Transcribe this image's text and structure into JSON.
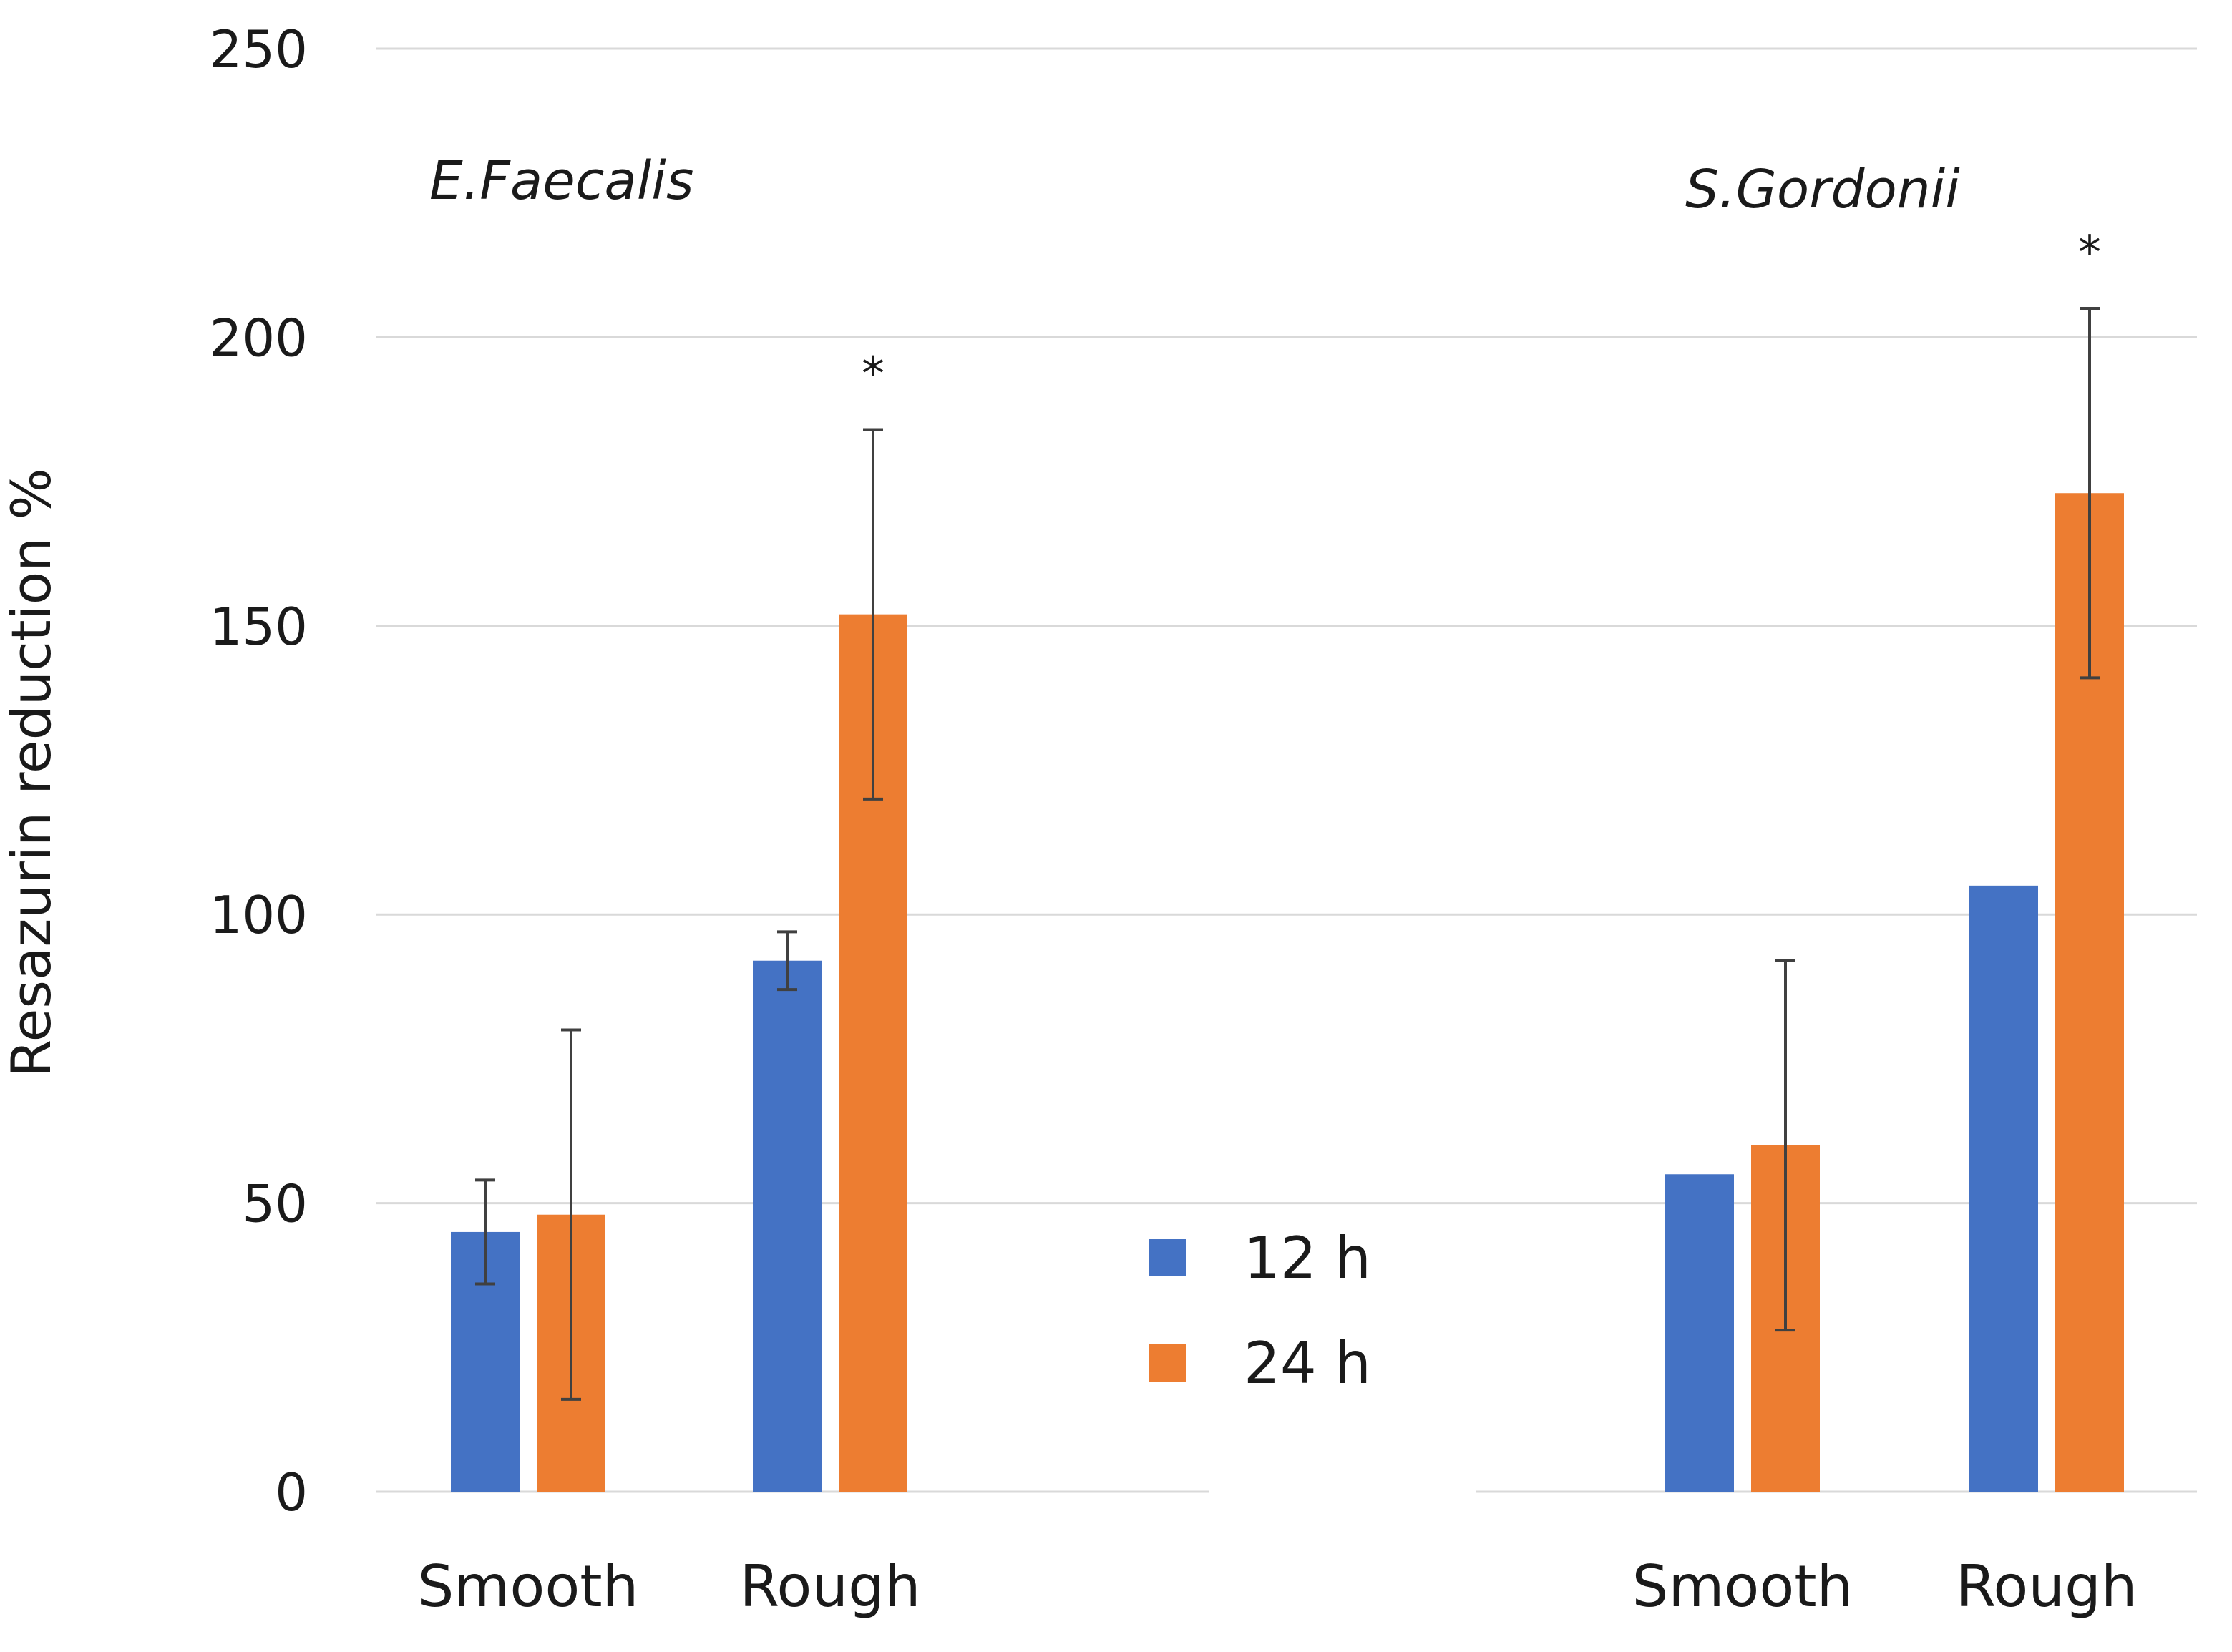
{
  "chart_data": {
    "type": "bar",
    "title": "",
    "xlabel": "",
    "ylabel": "Resazurin reduction %",
    "ylim": [
      0,
      250
    ],
    "yticks": [
      0,
      50,
      100,
      150,
      200,
      250
    ],
    "grid": true,
    "series_names": [
      "12 h",
      "24 h"
    ],
    "series_colors": [
      "#4472c4",
      "#ed7d31"
    ],
    "legend_position": "center",
    "groups": [
      {
        "title": "E.Faecalis",
        "categories": [
          {
            "label": "Smooth",
            "bars": [
              {
                "series": "12 h",
                "value": 45,
                "error_low": 36,
                "error_high": 54,
                "significant": false
              },
              {
                "series": "24 h",
                "value": 48,
                "error_low": 16,
                "error_high": 80,
                "significant": false
              }
            ]
          },
          {
            "label": "Rough",
            "bars": [
              {
                "series": "12 h",
                "value": 92,
                "error_low": 87,
                "error_high": 97,
                "significant": false
              },
              {
                "series": "24 h",
                "value": 152,
                "error_low": 120,
                "error_high": 184,
                "significant": true
              }
            ]
          }
        ]
      },
      {
        "title": "S.Gordonii",
        "categories": [
          {
            "label": "Smooth",
            "bars": [
              {
                "series": "12 h",
                "value": 55,
                "error_low": null,
                "error_high": null,
                "significant": false
              },
              {
                "series": "24 h",
                "value": 60,
                "error_low": 28,
                "error_high": 92,
                "significant": false
              }
            ]
          },
          {
            "label": "Rough",
            "bars": [
              {
                "series": "12 h",
                "value": 105,
                "error_low": null,
                "error_high": null,
                "significant": false
              },
              {
                "series": "24 h",
                "value": 173,
                "error_low": 141,
                "error_high": 205,
                "significant": true
              }
            ]
          }
        ]
      }
    ],
    "significance_marker": "*"
  }
}
